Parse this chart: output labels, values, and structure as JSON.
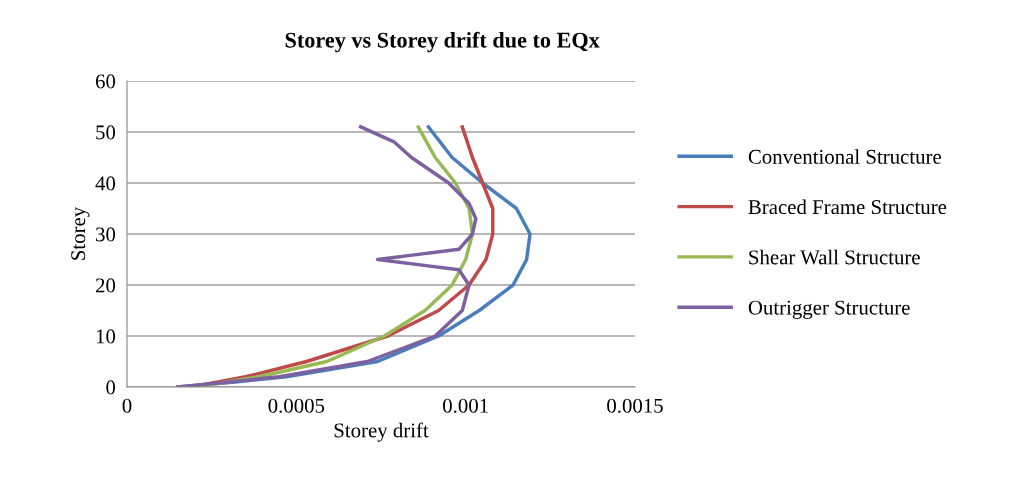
{
  "chart_data": {
    "type": "line",
    "title": "Storey vs Storey drift due to EQx",
    "xlabel": "Storey drift",
    "ylabel": "Storey",
    "xlim": [
      0,
      0.0015
    ],
    "xticks": [
      0,
      0.0005,
      0.001,
      0.0015
    ],
    "ylim": [
      0,
      60
    ],
    "yticks": [
      0,
      10,
      20,
      30,
      40,
      50,
      60
    ],
    "grid": "y",
    "legend": "right",
    "marker": "none",
    "line_style": "solid",
    "series": [
      {
        "name": "Conventional Structure",
        "color": "#4a7ebb",
        "x": [
          0.00015,
          0.00032,
          0.00047,
          0.00074,
          0.00092,
          0.00104,
          0.00114,
          0.00118,
          0.00119,
          0.00115,
          0.00105,
          0.00096,
          0.00089
        ],
        "values": [
          0,
          1,
          2,
          5,
          10,
          15,
          20,
          25,
          30,
          35,
          40,
          45,
          51
        ]
      },
      {
        "name": "Braced Frame Structure",
        "color": "#be4b48",
        "x": [
          0.00019,
          0.00035,
          0.00053,
          0.00077,
          0.00092,
          0.00101,
          0.00106,
          0.00108,
          0.00108,
          0.00105,
          0.00102,
          0.00099
        ],
        "values": [
          0,
          2,
          5,
          10,
          15,
          20,
          25,
          30,
          35,
          40,
          45,
          51
        ]
      },
      {
        "name": "Shear Wall Structure",
        "color": "#98b954",
        "x": [
          0.0002,
          0.00039,
          0.00059,
          0.00076,
          0.00088,
          0.00096,
          0.001,
          0.00102,
          0.00101,
          0.00097,
          0.00091,
          0.00086
        ],
        "values": [
          0,
          2,
          5,
          10,
          15,
          20,
          25,
          30,
          35,
          40,
          45,
          51
        ]
      },
      {
        "name": "Outrigger Structure",
        "color": "#7d60a0",
        "x": [
          0.00015,
          0.00045,
          0.00071,
          0.00091,
          0.00099,
          0.00101,
          0.00098,
          0.00086,
          0.00074,
          0.00086,
          0.00098,
          0.00102,
          0.00103,
          0.00101,
          0.00095,
          0.00084,
          0.00079,
          0.00069
        ],
        "values": [
          0,
          2,
          5,
          10,
          15,
          20,
          23,
          24,
          25,
          26,
          27,
          30,
          33,
          36,
          40,
          45,
          48,
          51
        ]
      }
    ]
  }
}
